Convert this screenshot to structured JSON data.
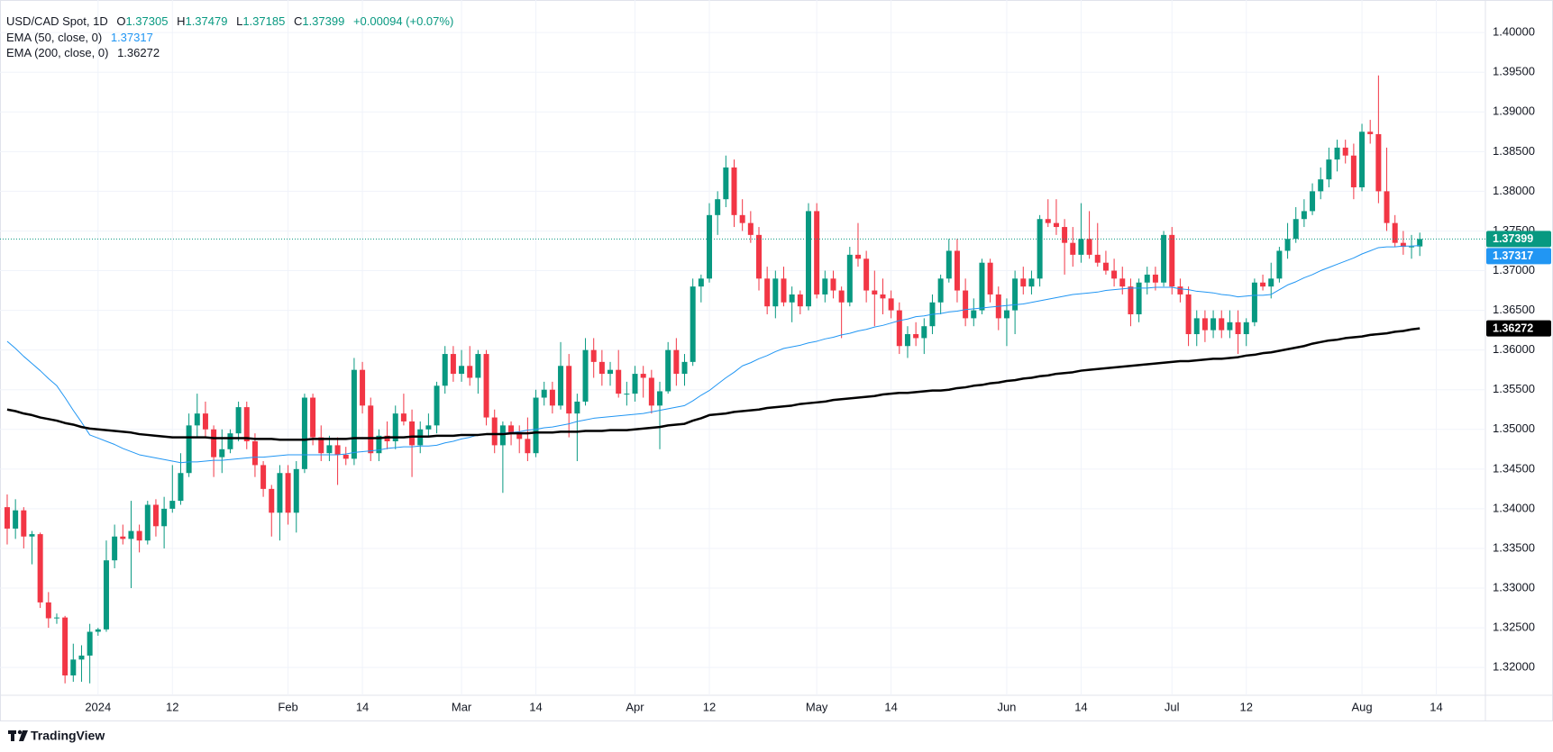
{
  "chart_data": {
    "type": "candlestick",
    "title": "USD/CAD Spot, 1D",
    "ohlc_prefixes": [
      "O",
      "H",
      "L",
      "C"
    ],
    "change": "+0.00094 (+0.07%)",
    "watermark": "TradingView",
    "up_color": "#089981",
    "down_color": "#f23645",
    "grid": true,
    "ylim": [
      1.3165,
      1.4041
    ],
    "yticks": [
      {
        "value": 1.32,
        "label": "1.32000"
      },
      {
        "value": 1.325,
        "label": "1.32500"
      },
      {
        "value": 1.33,
        "label": "1.33000"
      },
      {
        "value": 1.335,
        "label": "1.33500"
      },
      {
        "value": 1.34,
        "label": "1.34000"
      },
      {
        "value": 1.345,
        "label": "1.34500"
      },
      {
        "value": 1.35,
        "label": "1.35000"
      },
      {
        "value": 1.355,
        "label": "1.35500"
      },
      {
        "value": 1.36,
        "label": "1.36000"
      },
      {
        "value": 1.365,
        "label": "1.36500"
      },
      {
        "value": 1.37,
        "label": "1.37000"
      },
      {
        "value": 1.375,
        "label": "1.37500"
      },
      {
        "value": 1.38,
        "label": "1.38000"
      },
      {
        "value": 1.385,
        "label": "1.38500"
      },
      {
        "value": 1.39,
        "label": "1.39000"
      },
      {
        "value": 1.395,
        "label": "1.39500"
      },
      {
        "value": 1.4,
        "label": "1.40000"
      }
    ],
    "categories": [
      null,
      null,
      null,
      null,
      null,
      null,
      null,
      null,
      null,
      null,
      null,
      "2024",
      null,
      null,
      null,
      null,
      null,
      null,
      null,
      null,
      "12",
      null,
      null,
      null,
      null,
      null,
      null,
      null,
      null,
      null,
      null,
      null,
      null,
      null,
      "Feb",
      null,
      null,
      null,
      null,
      null,
      null,
      null,
      null,
      "14",
      null,
      null,
      null,
      null,
      null,
      null,
      null,
      null,
      null,
      null,
      null,
      "Mar",
      null,
      null,
      null,
      null,
      null,
      null,
      null,
      null,
      "14",
      null,
      null,
      null,
      null,
      null,
      null,
      null,
      null,
      null,
      null,
      null,
      "Apr",
      null,
      null,
      null,
      null,
      null,
      null,
      null,
      null,
      "12",
      null,
      null,
      null,
      null,
      null,
      null,
      null,
      null,
      null,
      null,
      null,
      null,
      "May",
      null,
      null,
      null,
      null,
      null,
      null,
      null,
      null,
      "14",
      null,
      null,
      null,
      null,
      null,
      null,
      null,
      null,
      null,
      null,
      null,
      null,
      null,
      "Jun",
      null,
      null,
      null,
      null,
      null,
      null,
      null,
      null,
      "14",
      null,
      null,
      null,
      null,
      null,
      null,
      null,
      null,
      null,
      null,
      "Jul",
      null,
      null,
      null,
      null,
      null,
      null,
      null,
      null,
      "12",
      null,
      null,
      null,
      null,
      null,
      null,
      null,
      null,
      null,
      null,
      null,
      null,
      null,
      "Aug",
      null,
      null,
      null,
      null,
      null,
      null,
      null,
      null,
      "14"
    ],
    "open": [
      1.3402,
      1.3375,
      1.3398,
      1.3365,
      1.3368,
      1.3282,
      1.3262,
      1.3263,
      1.319,
      1.321,
      1.3215,
      1.3245,
      1.3248,
      1.3335,
      1.3365,
      1.3362,
      1.3372,
      1.336,
      1.3405,
      1.3378,
      1.34,
      1.341,
      1.3445,
      1.3505,
      1.352,
      1.35,
      1.3465,
      1.3475,
      1.3495,
      1.3528,
      1.3485,
      1.3455,
      1.3425,
      1.3395,
      1.3445,
      1.3395,
      1.345,
      1.354,
      1.349,
      1.347,
      1.348,
      1.3468,
      1.3463,
      1.3575,
      1.353,
      1.347,
      1.3492,
      1.3485,
      1.352,
      1.351,
      1.348,
      1.35,
      1.3505,
      1.3555,
      1.3595,
      1.357,
      1.358,
      1.3565,
      1.3595,
      1.3515,
      1.348,
      1.3505,
      1.3495,
      1.3488,
      1.347,
      1.354,
      1.355,
      1.353,
      1.358,
      1.352,
      1.3535,
      1.36,
      1.3585,
      1.357,
      1.3575,
      1.3545,
      1.3545,
      1.357,
      1.3565,
      1.353,
      1.3548,
      1.36,
      1.357,
      1.3585,
      1.368,
      1.369,
      1.377,
      1.379,
      1.383,
      1.377,
      1.376,
      1.3745,
      1.369,
      1.3655,
      1.369,
      1.366,
      1.367,
      1.3655,
      1.3775,
      1.367,
      1.369,
      1.3675,
      1.366,
      1.372,
      1.3715,
      1.3675,
      1.367,
      1.3665,
      1.365,
      1.3605,
      1.362,
      1.3615,
      1.363,
      1.366,
      1.369,
      1.3725,
      1.3675,
      1.364,
      1.365,
      1.371,
      1.367,
      1.364,
      1.365,
      1.369,
      1.368,
      1.369,
      1.3765,
      1.376,
      1.3755,
      1.3735,
      1.372,
      1.374,
      1.372,
      1.371,
      1.37,
      1.369,
      1.368,
      1.3645,
      1.3685,
      1.3695,
      1.3685,
      1.3745,
      1.368,
      1.367,
      1.362,
      1.364,
      1.3625,
      1.364,
      1.3625,
      1.3635,
      1.362,
      1.3635,
      1.3685,
      1.368,
      1.369,
      1.3725,
      1.374,
      1.3765,
      1.3775,
      1.38,
      1.3815,
      1.384,
      1.3855,
      1.3845,
      1.3805,
      1.3875,
      1.3872,
      1.38,
      1.376,
      1.3735,
      1.373,
      1.37305,
      null,
      null
    ],
    "high": [
      1.3418,
      1.3412,
      1.3402,
      1.3372,
      1.337,
      1.3295,
      1.3268,
      1.3265,
      1.323,
      1.3228,
      1.3255,
      1.325,
      1.336,
      1.338,
      1.338,
      1.341,
      1.338,
      1.341,
      1.3412,
      1.3415,
      1.3455,
      1.347,
      1.352,
      1.3545,
      1.3535,
      1.3505,
      1.35,
      1.35,
      1.3535,
      1.3535,
      1.3495,
      1.346,
      1.343,
      1.3455,
      1.3455,
      1.346,
      1.3545,
      1.3545,
      1.3505,
      1.3492,
      1.349,
      1.3478,
      1.359,
      1.3585,
      1.354,
      1.35,
      1.351,
      1.353,
      1.3545,
      1.3525,
      1.351,
      1.352,
      1.356,
      1.3605,
      1.3605,
      1.36,
      1.3605,
      1.36,
      1.36,
      1.3525,
      1.351,
      1.351,
      1.3505,
      1.3515,
      1.355,
      1.356,
      1.356,
      1.361,
      1.3595,
      1.3545,
      1.3615,
      1.3615,
      1.36,
      1.3585,
      1.36,
      1.356,
      1.358,
      1.358,
      1.3575,
      1.356,
      1.361,
      1.3615,
      1.3595,
      1.369,
      1.3695,
      1.3785,
      1.38,
      1.3845,
      1.384,
      1.379,
      1.3775,
      1.3755,
      1.3705,
      1.37,
      1.3705,
      1.368,
      1.3675,
      1.3785,
      1.3785,
      1.37,
      1.37,
      1.368,
      1.373,
      1.376,
      1.3725,
      1.37,
      1.369,
      1.3675,
      1.366,
      1.363,
      1.3635,
      1.364,
      1.367,
      1.3695,
      1.374,
      1.374,
      1.369,
      1.3665,
      1.3715,
      1.3715,
      1.368,
      1.3665,
      1.37,
      1.3705,
      1.37,
      1.377,
      1.379,
      1.379,
      1.3765,
      1.3755,
      1.3785,
      1.3775,
      1.376,
      1.3725,
      1.3715,
      1.3705,
      1.369,
      1.369,
      1.3705,
      1.3705,
      1.375,
      1.3755,
      1.369,
      1.368,
      1.365,
      1.365,
      1.365,
      1.365,
      1.365,
      1.365,
      1.364,
      1.369,
      1.3695,
      1.371,
      1.373,
      1.376,
      1.378,
      1.379,
      1.381,
      1.383,
      1.3855,
      1.3865,
      1.3865,
      1.386,
      1.3885,
      1.389,
      1.3946,
      1.3855,
      1.377,
      1.375,
      1.3745,
      1.37479,
      null,
      null
    ],
    "low": [
      1.3355,
      1.3362,
      1.335,
      1.333,
      1.3275,
      1.325,
      1.3255,
      1.318,
      1.3182,
      1.3182,
      1.318,
      1.324,
      1.3245,
      1.3325,
      1.3355,
      1.33,
      1.3345,
      1.3355,
      1.3365,
      1.335,
      1.3395,
      1.3405,
      1.344,
      1.349,
      1.349,
      1.344,
      1.3445,
      1.347,
      1.3485,
      1.3475,
      1.344,
      1.3415,
      1.3365,
      1.336,
      1.338,
      1.337,
      1.3445,
      1.348,
      1.346,
      1.346,
      1.343,
      1.3455,
      1.3455,
      1.352,
      1.346,
      1.346,
      1.3475,
      1.3475,
      1.3505,
      1.344,
      1.347,
      1.349,
      1.3495,
      1.3545,
      1.356,
      1.356,
      1.3555,
      1.3545,
      1.3505,
      1.347,
      1.342,
      1.348,
      1.347,
      1.346,
      1.3465,
      1.353,
      1.352,
      1.3525,
      1.349,
      1.346,
      1.353,
      1.3565,
      1.3555,
      1.3555,
      1.354,
      1.353,
      1.3535,
      1.354,
      1.352,
      1.3475,
      1.3545,
      1.3555,
      1.3555,
      1.358,
      1.366,
      1.3685,
      1.3745,
      1.378,
      1.3755,
      1.375,
      1.3735,
      1.3675,
      1.3645,
      1.364,
      1.3655,
      1.3635,
      1.3645,
      1.365,
      1.3665,
      1.366,
      1.3665,
      1.3615,
      1.3655,
      1.3705,
      1.366,
      1.363,
      1.3645,
      1.364,
      1.3595,
      1.359,
      1.3605,
      1.3595,
      1.362,
      1.3645,
      1.3685,
      1.366,
      1.363,
      1.363,
      1.3645,
      1.366,
      1.3625,
      1.3605,
      1.362,
      1.367,
      1.367,
      1.368,
      1.3755,
      1.3745,
      1.3695,
      1.3705,
      1.371,
      1.3715,
      1.3705,
      1.3695,
      1.368,
      1.367,
      1.363,
      1.3635,
      1.367,
      1.3675,
      1.368,
      1.367,
      1.366,
      1.3605,
      1.3605,
      1.361,
      1.3615,
      1.3615,
      1.3615,
      1.3595,
      1.3605,
      1.363,
      1.3675,
      1.3665,
      1.3685,
      1.3715,
      1.3735,
      1.3755,
      1.377,
      1.379,
      1.3805,
      1.3825,
      1.3835,
      1.379,
      1.38,
      1.386,
      1.3785,
      1.375,
      1.373,
      1.372,
      1.3715,
      1.37185,
      null,
      null
    ],
    "close": [
      1.3375,
      1.3398,
      1.3365,
      1.3368,
      1.3282,
      1.3262,
      1.3263,
      1.319,
      1.321,
      1.3215,
      1.3245,
      1.3248,
      1.3335,
      1.3365,
      1.3362,
      1.3372,
      1.336,
      1.3405,
      1.3378,
      1.34,
      1.341,
      1.3445,
      1.3505,
      1.352,
      1.35,
      1.3465,
      1.3475,
      1.3495,
      1.3528,
      1.3485,
      1.3455,
      1.3425,
      1.3395,
      1.3445,
      1.3395,
      1.345,
      1.354,
      1.349,
      1.347,
      1.348,
      1.3468,
      1.3463,
      1.3575,
      1.353,
      1.347,
      1.3492,
      1.3485,
      1.352,
      1.351,
      1.348,
      1.35,
      1.3505,
      1.3555,
      1.3595,
      1.357,
      1.358,
      1.3565,
      1.3595,
      1.3515,
      1.348,
      1.3505,
      1.3495,
      1.3488,
      1.347,
      1.354,
      1.355,
      1.353,
      1.358,
      1.352,
      1.3535,
      1.36,
      1.3585,
      1.357,
      1.3575,
      1.3545,
      1.3545,
      1.357,
      1.3565,
      1.353,
      1.3548,
      1.36,
      1.357,
      1.3585,
      1.368,
      1.369,
      1.377,
      1.379,
      1.383,
      1.377,
      1.376,
      1.3745,
      1.369,
      1.3655,
      1.369,
      1.366,
      1.367,
      1.3655,
      1.3775,
      1.367,
      1.369,
      1.3675,
      1.366,
      1.372,
      1.3715,
      1.3675,
      1.367,
      1.3665,
      1.365,
      1.3605,
      1.362,
      1.3615,
      1.363,
      1.366,
      1.369,
      1.3725,
      1.3675,
      1.364,
      1.365,
      1.371,
      1.367,
      1.364,
      1.365,
      1.369,
      1.368,
      1.369,
      1.3765,
      1.376,
      1.3755,
      1.3735,
      1.372,
      1.374,
      1.372,
      1.371,
      1.37,
      1.369,
      1.368,
      1.3645,
      1.3685,
      1.3695,
      1.3685,
      1.3745,
      1.368,
      1.367,
      1.362,
      1.364,
      1.3625,
      1.364,
      1.3625,
      1.3635,
      1.362,
      1.3635,
      1.3685,
      1.368,
      1.369,
      1.3725,
      1.374,
      1.3765,
      1.3775,
      1.38,
      1.3815,
      1.384,
      1.3855,
      1.3845,
      1.3805,
      1.3875,
      1.3872,
      1.38,
      1.376,
      1.3735,
      1.373,
      1.37305,
      1.37399,
      null,
      null
    ],
    "series": [
      {
        "name": "EMA (50, close, 0)",
        "color": "#2196f3",
        "width": 1,
        "values": [
          1.3611,
          1.3602,
          1.3592,
          1.3583,
          1.3574,
          1.3564,
          1.3555,
          1.354,
          1.3524,
          1.3509,
          1.3493,
          1.3489,
          1.3485,
          1.3481,
          1.3476,
          1.3472,
          1.3468,
          1.3466,
          1.3464,
          1.3462,
          1.346,
          1.3458,
          1.3459,
          1.3459,
          1.346,
          1.3461,
          1.3461,
          1.3462,
          1.3463,
          1.3464,
          1.3465,
          1.3465,
          1.3466,
          1.3467,
          1.3468,
          1.3468,
          1.3468,
          1.3468,
          1.3468,
          1.3468,
          1.3468,
          1.3469,
          1.3471,
          1.3472,
          1.3473,
          1.3474,
          1.3476,
          1.3477,
          1.3478,
          1.3478,
          1.3479,
          1.3479,
          1.348,
          1.3483,
          1.3485,
          1.3488,
          1.349,
          1.3493,
          1.3494,
          1.3494,
          1.3495,
          1.3496,
          1.3497,
          1.3499,
          1.35,
          1.3502,
          1.3503,
          1.3505,
          1.3507,
          1.351,
          1.3512,
          1.3514,
          1.3515,
          1.3516,
          1.3517,
          1.3518,
          1.3519,
          1.352,
          1.3522,
          1.3524,
          1.3526,
          1.3528,
          1.353,
          1.3536,
          1.3543,
          1.3549,
          1.3557,
          1.3565,
          1.3572,
          1.358,
          1.3584,
          1.3589,
          1.3593,
          1.3598,
          1.3602,
          1.3604,
          1.3606,
          1.3609,
          1.3611,
          1.3614,
          1.3616,
          1.3619,
          1.3621,
          1.3624,
          1.3626,
          1.3629,
          1.3631,
          1.3634,
          1.3637,
          1.3639,
          1.3642,
          1.3643,
          1.3645,
          1.3646,
          1.3648,
          1.3649,
          1.3651,
          1.3652,
          1.3653,
          1.3654,
          1.3655,
          1.3656,
          1.3657,
          1.3658,
          1.366,
          1.3662,
          1.3664,
          1.3666,
          1.3668,
          1.367,
          1.3671,
          1.3672,
          1.3673,
          1.3675,
          1.3676,
          1.3677,
          1.3678,
          1.3678,
          1.3678,
          1.3679,
          1.3679,
          1.3679,
          1.3677,
          1.3676,
          1.3674,
          1.3673,
          1.3672,
          1.367,
          1.3669,
          1.3667,
          1.3668,
          1.3669,
          1.3669,
          1.367,
          1.3676,
          1.3682,
          1.3686,
          1.3691,
          1.3695,
          1.37,
          1.3704,
          1.3708,
          1.3712,
          1.3716,
          1.3721,
          1.3725,
          1.3729,
          1.373,
          1.373,
          1.3731,
          1.3731,
          1.37317,
          null,
          null
        ]
      },
      {
        "name": "EMA (200, close, 0)",
        "color": "#000000",
        "width": 2.5,
        "values": [
          1.3525,
          1.3523,
          1.352,
          1.3518,
          1.3515,
          1.3513,
          1.3511,
          1.3508,
          1.3506,
          1.3503,
          1.3501,
          1.35,
          1.3499,
          1.3498,
          1.3497,
          1.3496,
          1.3494,
          1.3493,
          1.3492,
          1.3491,
          1.349,
          1.349,
          1.349,
          1.349,
          1.349,
          1.3489,
          1.3489,
          1.3489,
          1.3489,
          1.3489,
          1.3488,
          1.3488,
          1.3488,
          1.3487,
          1.3487,
          1.3487,
          1.3487,
          1.3488,
          1.3488,
          1.3488,
          1.3488,
          1.3488,
          1.3489,
          1.3489,
          1.3489,
          1.3489,
          1.349,
          1.349,
          1.349,
          1.3491,
          1.3491,
          1.3491,
          1.3492,
          1.3492,
          1.3492,
          1.3493,
          1.3493,
          1.3493,
          1.3494,
          1.3494,
          1.3494,
          1.3495,
          1.3495,
          1.3495,
          1.3496,
          1.3496,
          1.3496,
          1.3497,
          1.3497,
          1.3497,
          1.3498,
          1.3498,
          1.3498,
          1.3499,
          1.3499,
          1.3499,
          1.35,
          1.3501,
          1.3502,
          1.3503,
          1.3505,
          1.3506,
          1.3507,
          1.3511,
          1.3514,
          1.3518,
          1.3519,
          1.352,
          1.3522,
          1.3523,
          1.3524,
          1.3525,
          1.3527,
          1.3528,
          1.3529,
          1.353,
          1.3532,
          1.3533,
          1.3534,
          1.3535,
          1.3537,
          1.3538,
          1.3539,
          1.354,
          1.3541,
          1.3542,
          1.3544,
          1.3545,
          1.3546,
          1.3546,
          1.3547,
          1.3548,
          1.3549,
          1.3549,
          1.355,
          1.3552,
          1.3553,
          1.3555,
          1.3556,
          1.3558,
          1.3559,
          1.3561,
          1.3562,
          1.3564,
          1.3565,
          1.3567,
          1.3568,
          1.357,
          1.3571,
          1.3572,
          1.3574,
          1.3575,
          1.3576,
          1.3577,
          1.3578,
          1.3579,
          1.358,
          1.3581,
          1.3582,
          1.3583,
          1.3584,
          1.3585,
          1.3586,
          1.3586,
          1.3587,
          1.3588,
          1.3589,
          1.3589,
          1.359,
          1.3591,
          1.3593,
          1.3594,
          1.3596,
          1.3597,
          1.3599,
          1.3601,
          1.3603,
          1.3605,
          1.3608,
          1.361,
          1.3612,
          1.3613,
          1.3615,
          1.3616,
          1.3617,
          1.3619,
          1.362,
          1.3621,
          1.3623,
          1.3624,
          1.3626,
          1.36272,
          null,
          null
        ]
      }
    ]
  }
}
